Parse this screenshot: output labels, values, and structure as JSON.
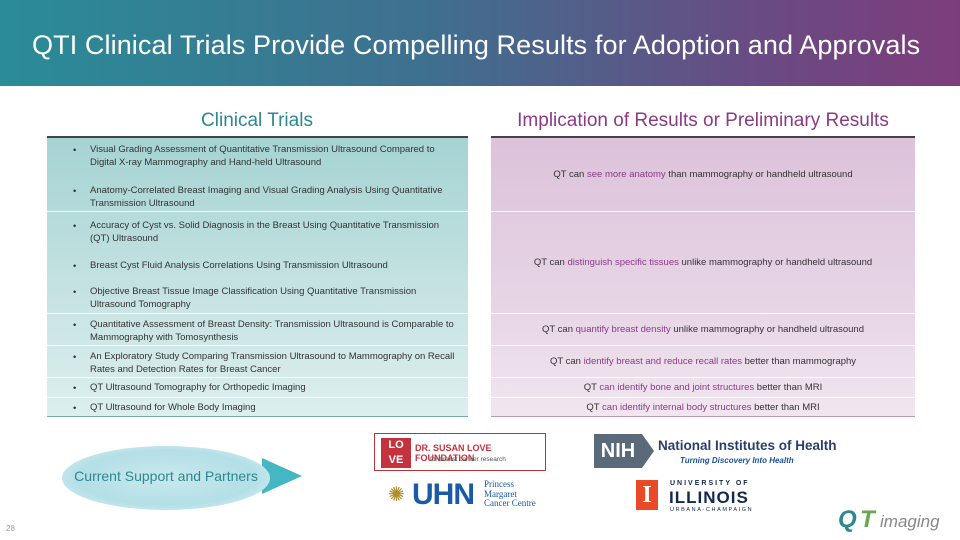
{
  "header": {
    "title": "QTI Clinical Trials Provide Compelling Results for Adoption and Approvals"
  },
  "left_column": {
    "title": "Clinical Trials",
    "rows": [
      {
        "items": [
          "Visual Grading Assessment of Quantitative Transmission Ultrasound Compared to Digital X-ray Mammography and Hand-held Ultrasound",
          "Anatomy-Correlated Breast Imaging and Visual Grading Analysis Using Quantitative Transmission Ultrasound"
        ]
      },
      {
        "items": [
          "Accuracy of Cyst vs. Solid Diagnosis in the Breast Using Quantitative Transmission (QT) Ultrasound",
          "Breast Cyst Fluid Analysis Correlations Using Transmission Ultrasound",
          "Objective Breast Tissue Image Classification Using Quantitative Transmission Ultrasound Tomography"
        ]
      },
      {
        "items": [
          "Quantitative Assessment of Breast Density: Transmission Ultrasound is Comparable to Mammography with Tomosynthesis"
        ]
      },
      {
        "items": [
          "An Exploratory Study Comparing Transmission Ultrasound to Mammography on Recall Rates and Detection Rates for Breast Cancer"
        ]
      },
      {
        "items": [
          "QT Ultrasound Tomography for Orthopedic Imaging"
        ]
      },
      {
        "items": [
          "QT Ultrasound for Whole Body Imaging"
        ]
      }
    ]
  },
  "right_column": {
    "title": "Implication of Results or Preliminary Results",
    "rows": [
      {
        "pre": "QT can ",
        "highlight": "see more anatomy",
        "post": " than mammography or handheld ultrasound"
      },
      {
        "pre": "QT can ",
        "highlight": "distinguish specific tissues",
        "post": " unlike mammography or handheld ultrasound"
      },
      {
        "pre": "QT can ",
        "highlight": "quantify breast density",
        "post": " unlike mammography or handheld ultrasound"
      },
      {
        "pre": "QT can ",
        "highlight": "identify breast and reduce recall rates",
        "post": " better than mammography"
      },
      {
        "pre": "QT ",
        "highlight": "can identify bone and joint structures",
        "post": " better than MRI"
      },
      {
        "pre": "QT ",
        "highlight": "can identify internal body structures",
        "post": " better than MRI"
      }
    ]
  },
  "support": {
    "label": "Current Support and Partners"
  },
  "logos": {
    "love": {
      "letters": [
        "LO",
        "VE"
      ],
      "name": "DR. SUSAN LOVE FOUNDATION",
      "tagline": "for breast cancer research"
    },
    "nih": {
      "abbr": "NIH",
      "name": "National Institutes of Health",
      "tagline": "Turning Discovery Into Health"
    },
    "uhn": {
      "abbr": "UHN",
      "sub": [
        "Princess",
        "Margaret",
        "Cancer Centre"
      ]
    },
    "illinois": {
      "letter": "I",
      "top": "UNIVERSITY OF",
      "main": "ILLINOIS",
      "bottom": "URBANA-CHAMPAIGN"
    },
    "qt": {
      "q": "Q",
      "t": "T",
      "rest": "imaging"
    }
  },
  "page_number": "28",
  "colors": {
    "teal": "#2b8891",
    "purple": "#8b3a86"
  }
}
